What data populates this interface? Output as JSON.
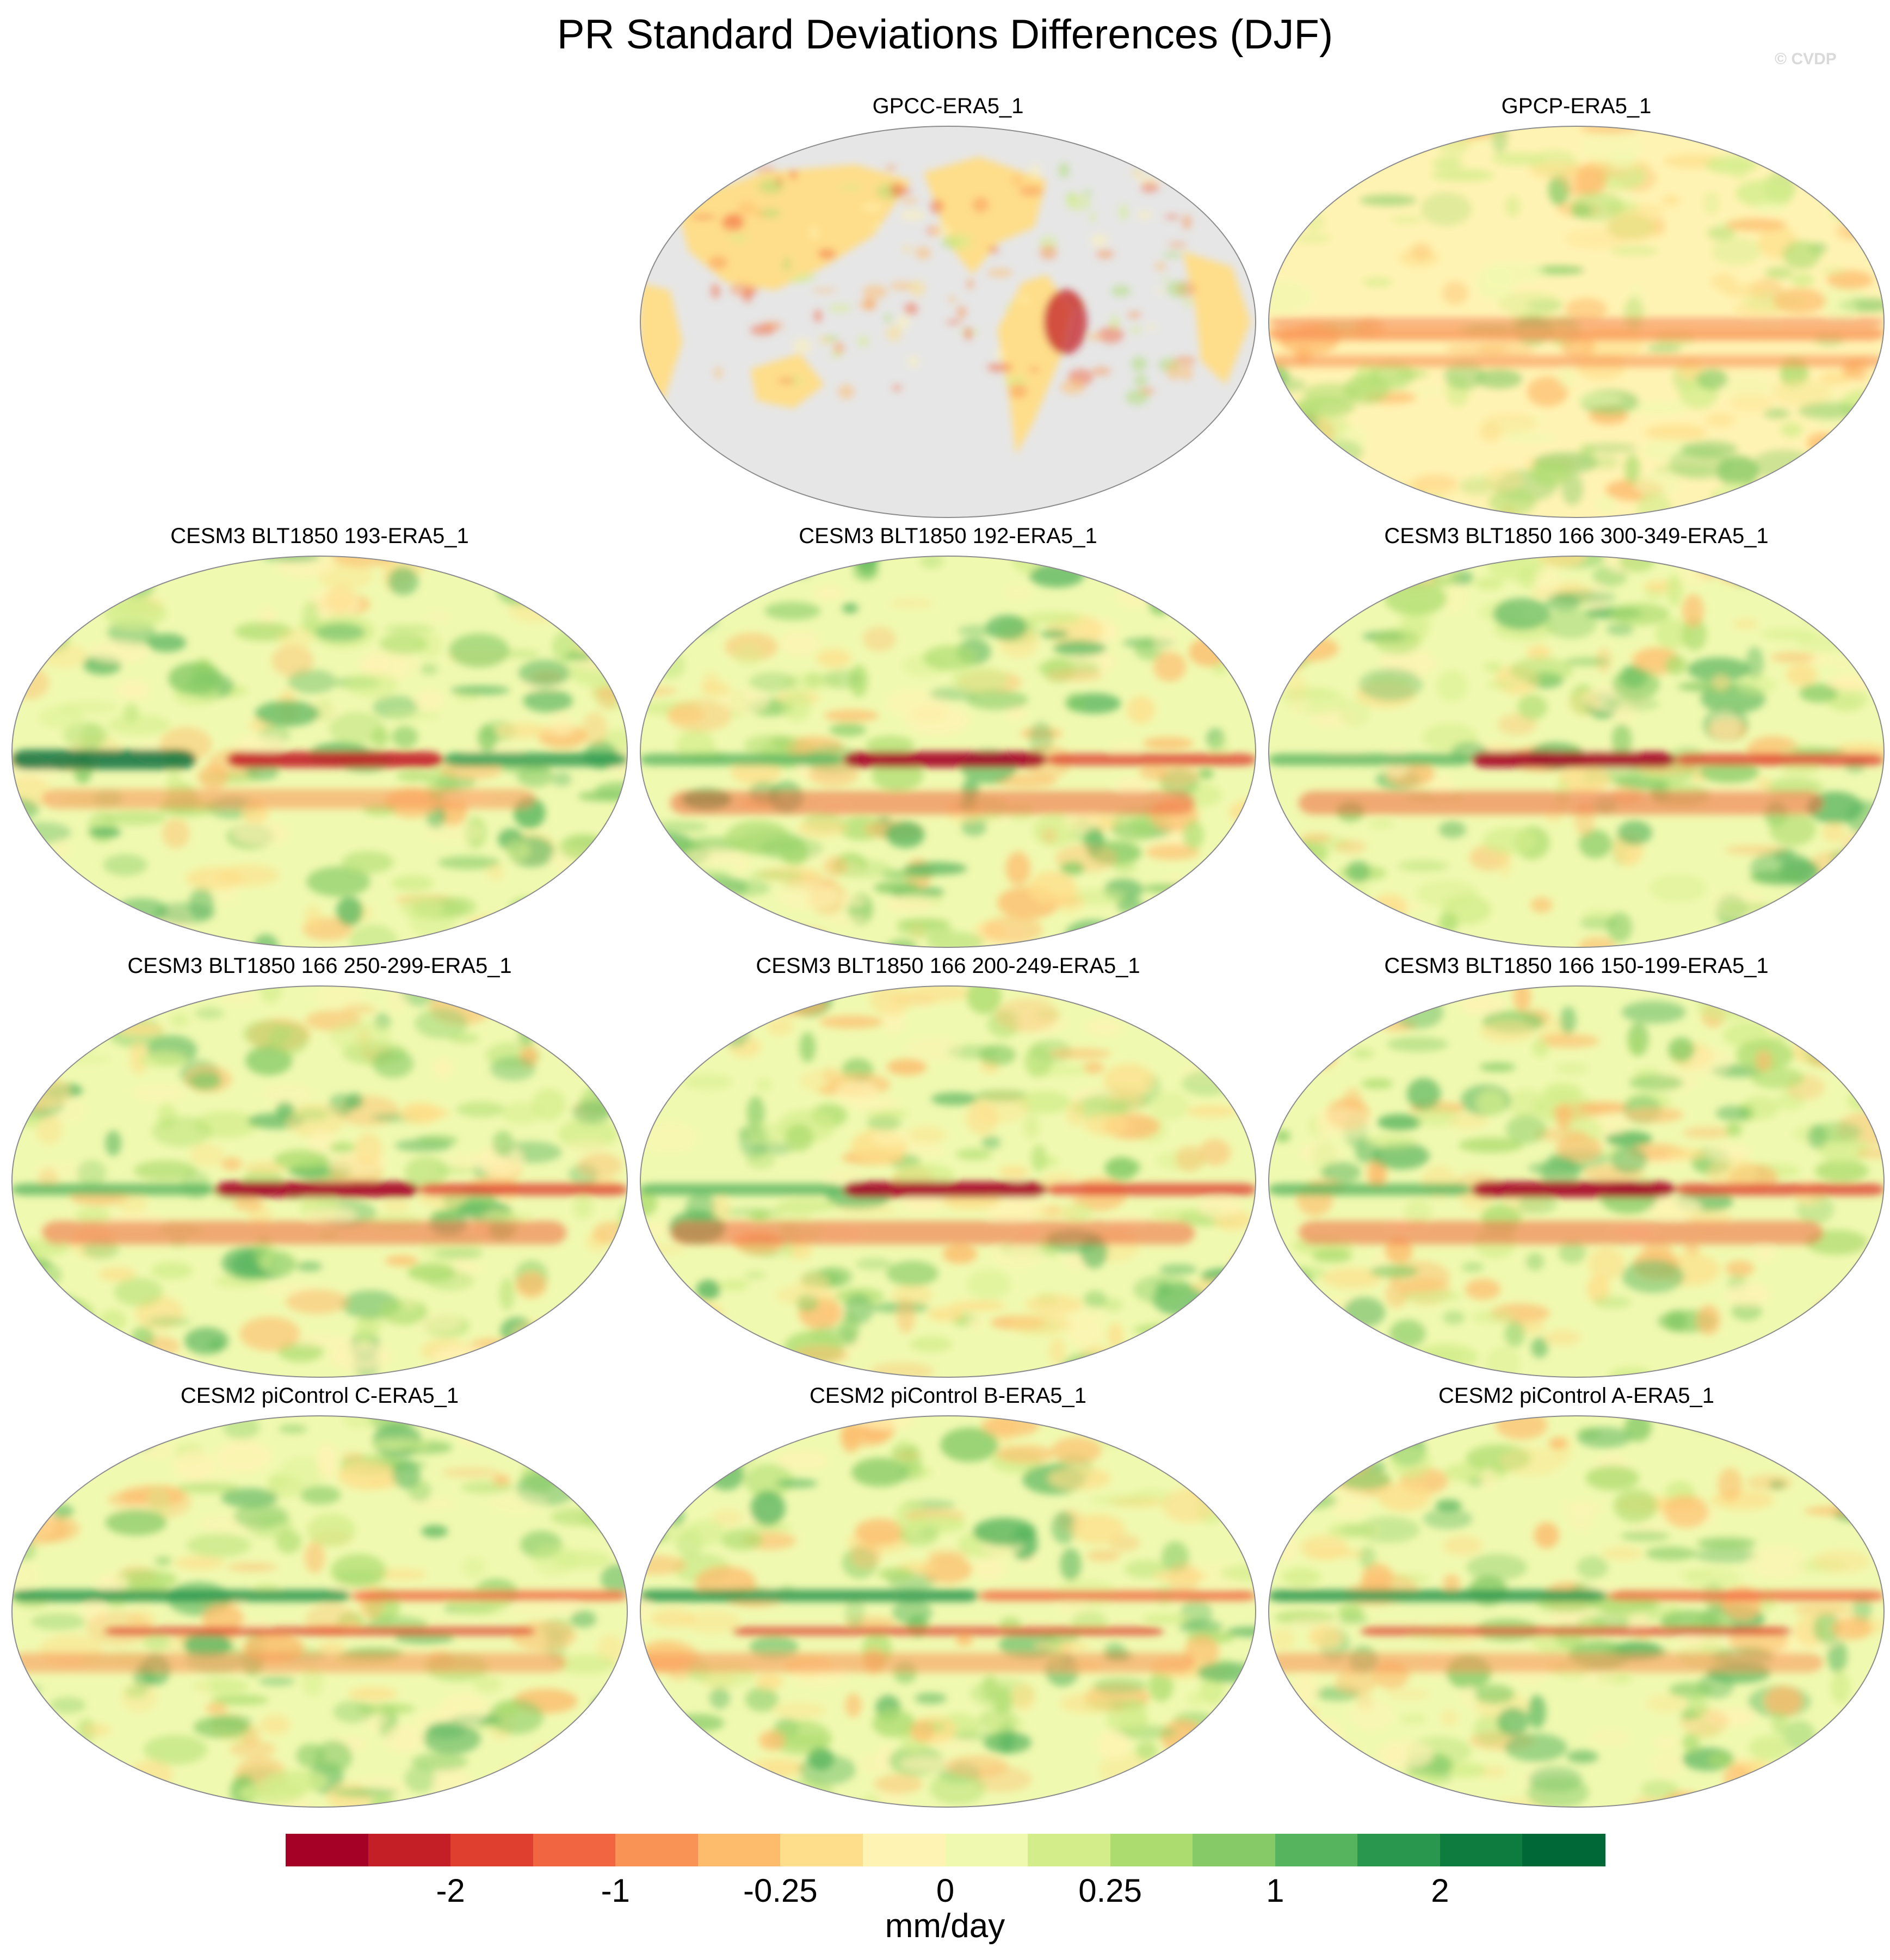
{
  "title": "PR Standard Deviations Differences (DJF)",
  "credit": "© CVDP",
  "panels": [
    {
      "label": "GPCC-ERA5_1",
      "style": "gpcc"
    },
    {
      "label": "GPCP-ERA5_1",
      "style": "gpcp"
    },
    {
      "label": "CESM3 BLT1850 193-ERA5_1",
      "style": "model_a"
    },
    {
      "label": "CESM3 BLT1850 192-ERA5_1",
      "style": "model_b"
    },
    {
      "label": "CESM3 BLT1850 166 300-349-ERA5_1",
      "style": "model_b"
    },
    {
      "label": "CESM3 BLT1850 166 250-299-ERA5_1",
      "style": "model_b"
    },
    {
      "label": "CESM3 BLT1850 166 200-249-ERA5_1",
      "style": "model_b"
    },
    {
      "label": "CESM3 BLT1850 166 150-199-ERA5_1",
      "style": "model_b"
    },
    {
      "label": "CESM2 piControl C-ERA5_1",
      "style": "cesm2"
    },
    {
      "label": "CESM2 piControl B-ERA5_1",
      "style": "cesm2"
    },
    {
      "label": "CESM2 piControl A-ERA5_1",
      "style": "cesm2"
    }
  ],
  "colorbar": {
    "unit": "mm/day",
    "colors": [
      "#a50026",
      "#c41f27",
      "#de3f2e",
      "#f16640",
      "#f99355",
      "#fdbb6c",
      "#fede8a",
      "#fff3b3",
      "#f0f9b0",
      "#d3ed8b",
      "#acdc6f",
      "#85ca66",
      "#57b45e",
      "#29974e",
      "#0f7c3f",
      "#006837"
    ],
    "ticks": [
      {
        "label": "-2",
        "boundary": 2
      },
      {
        "label": "-1",
        "boundary": 4
      },
      {
        "label": "-0.25",
        "boundary": 6
      },
      {
        "label": "0",
        "boundary": 8
      },
      {
        "label": "0.25",
        "boundary": 10
      },
      {
        "label": "1",
        "boundary": 12
      },
      {
        "label": "2",
        "boundary": 14
      }
    ]
  }
}
